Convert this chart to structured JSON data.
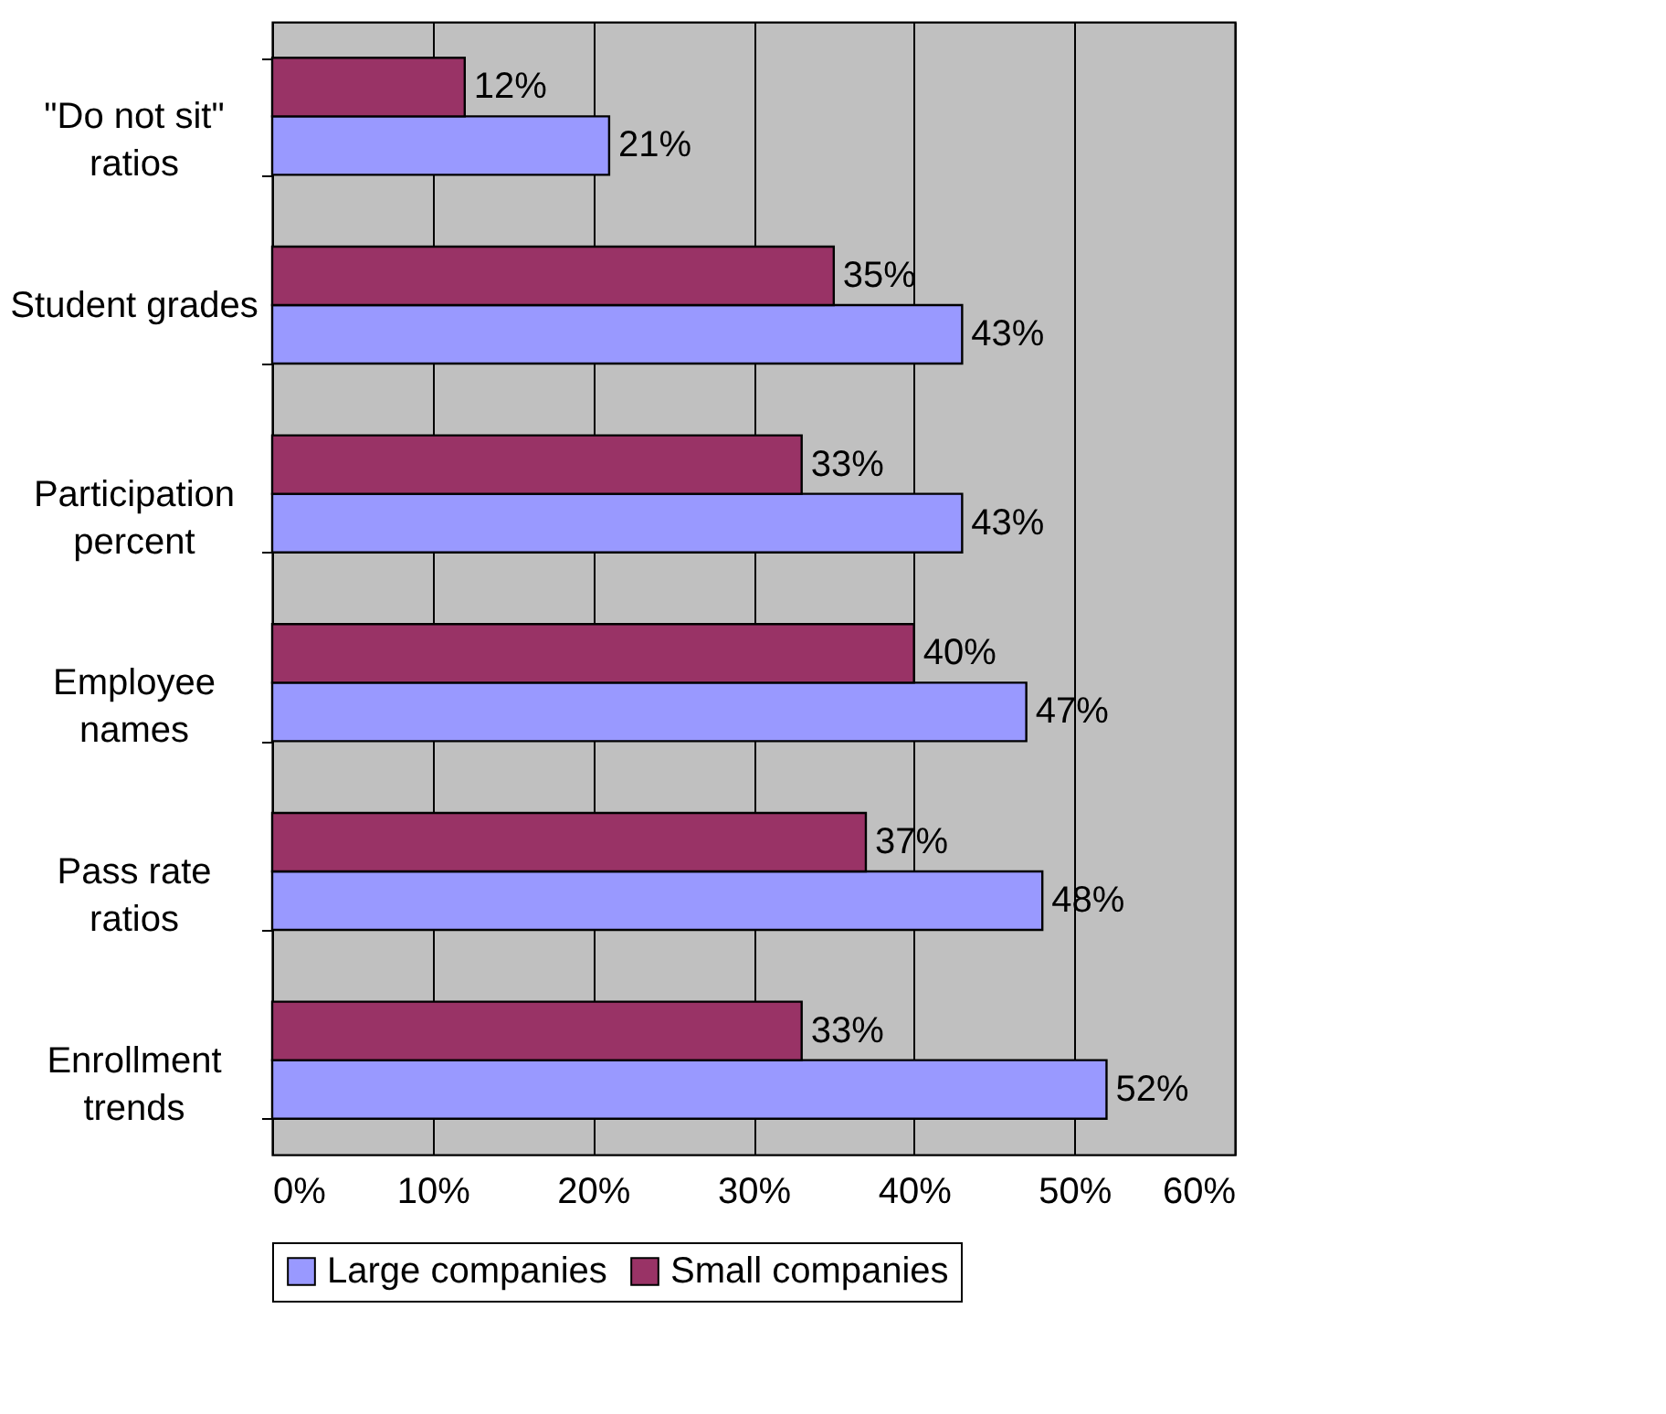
{
  "chart_data": {
    "type": "bar",
    "orientation": "horizontal",
    "categories": [
      "\"Do not sit\"\nratios",
      "Student grades",
      "Participation\npercent",
      "Employee\nnames",
      "Pass rate\nratios",
      "Enrollment\ntrends"
    ],
    "series": [
      {
        "name": "Large companies",
        "color": "#9999ff",
        "values": [
          21,
          43,
          43,
          47,
          48,
          52
        ],
        "value_labels": [
          "21%",
          "43%",
          "43%",
          "47%",
          "48%",
          "52%"
        ]
      },
      {
        "name": "Small companies",
        "color": "#993366",
        "values": [
          12,
          35,
          33,
          40,
          37,
          33
        ],
        "value_labels": [
          "12%",
          "35%",
          "33%",
          "40%",
          "37%",
          "33%"
        ]
      }
    ],
    "xlim": [
      0,
      60
    ],
    "xticks": [
      {
        "value": 0,
        "label": "0%"
      },
      {
        "value": 10,
        "label": "10%"
      },
      {
        "value": 20,
        "label": "20%"
      },
      {
        "value": 30,
        "label": "30%"
      },
      {
        "value": 40,
        "label": "40%"
      },
      {
        "value": 50,
        "label": "50%"
      },
      {
        "value": 60,
        "label": "60%"
      }
    ],
    "grid": "x",
    "legend": "bottom"
  }
}
